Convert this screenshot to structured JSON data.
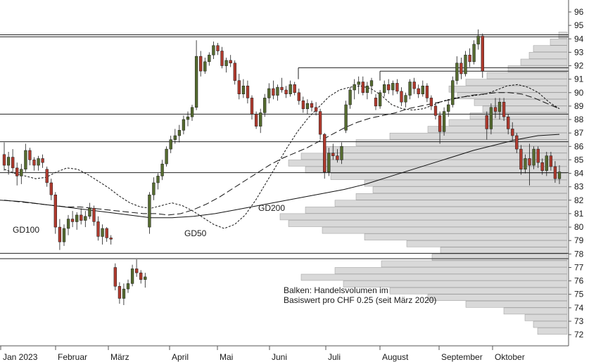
{
  "chart_data": {
    "type": "candlestick",
    "title": "",
    "xlabel": "",
    "ylabel": "",
    "ylim": [
      71,
      97
    ],
    "y_ticks": [
      72,
      73,
      74,
      75,
      76,
      77,
      78,
      79,
      80,
      81,
      82,
      83,
      84,
      85,
      86,
      87,
      88,
      89,
      90,
      91,
      92,
      93,
      94,
      95,
      96
    ],
    "x_ticks": [
      "Jan 2023",
      "Februar",
      "März",
      "April",
      "Mai",
      "Juni",
      "Juli",
      "August",
      "September",
      "Oktober"
    ],
    "grid": false,
    "colors": {
      "up": "#556b2f",
      "down": "#b03a2e",
      "volume_fill": "#d9d9d9",
      "volume_stroke": "#9a9a9a",
      "level_line": "#222222",
      "ma": "#111111"
    },
    "series": [
      {
        "name": "GD50",
        "values": [
          84.3,
          84.0,
          83.8,
          83.6,
          83.7,
          84.1,
          84.4,
          84.3,
          83.9,
          83.4,
          82.9,
          82.3,
          81.8,
          81.5,
          81.4,
          81.6,
          81.8,
          81.6,
          81.2,
          80.7,
          80.2,
          79.9,
          80.2,
          80.9,
          82.0,
          83.3,
          84.6,
          85.9,
          87.1,
          88.1,
          88.9,
          89.7,
          90.2,
          90.4,
          90.5,
          90.3,
          89.8,
          89.1,
          88.8,
          88.7,
          88.8,
          89.1,
          89.4,
          89.6,
          89.7,
          89.8,
          89.9,
          90.2,
          90.5,
          90.6,
          90.4,
          90.0,
          89.3,
          88.8
        ],
        "label": "GD50"
      },
      {
        "name": "GD100",
        "values": [
          82.0,
          81.9,
          81.8,
          81.7,
          81.6,
          81.5,
          81.5,
          81.4,
          81.3,
          81.2,
          81.1,
          81.0,
          81.0,
          80.9,
          81.0,
          81.3,
          81.7,
          82.2,
          82.8,
          83.4,
          84.0,
          84.6,
          85.1,
          85.5,
          85.9,
          86.4,
          86.9,
          87.4,
          87.8,
          88.1,
          88.3,
          88.5,
          88.8,
          89.0,
          89.2,
          89.4,
          89.6,
          89.8,
          89.9,
          90.0,
          90.0,
          89.9,
          89.6,
          89.2,
          88.8
        ],
        "label": "GD100"
      },
      {
        "name": "GD200",
        "values": [
          82.0,
          81.9,
          81.7,
          81.5,
          81.3,
          81.1,
          80.9,
          80.7,
          80.7,
          80.8,
          81.0,
          81.3,
          81.6,
          81.9,
          82.2,
          82.5,
          82.8,
          83.2,
          83.7,
          84.2,
          84.7,
          85.2,
          85.7,
          86.1,
          86.5,
          86.8,
          86.9
        ],
        "label": "GD200"
      }
    ],
    "candles": [
      [
        85.4,
        86.3,
        84.2,
        84.6
      ],
      [
        84.6,
        85.6,
        83.9,
        85.2
      ],
      [
        85.2,
        85.8,
        84.0,
        84.4
      ],
      [
        84.4,
        84.8,
        83.1,
        83.8
      ],
      [
        83.8,
        84.7,
        83.2,
        84.3
      ],
      [
        84.3,
        86.2,
        84.1,
        85.7
      ],
      [
        85.7,
        85.9,
        84.6,
        85.0
      ],
      [
        85.0,
        85.2,
        84.2,
        84.6
      ],
      [
        84.6,
        85.3,
        84.2,
        85.1
      ],
      [
        85.1,
        85.4,
        84.4,
        84.8
      ],
      [
        84.3,
        84.5,
        83.0,
        83.3
      ],
      [
        83.3,
        83.6,
        82.0,
        82.4
      ],
      [
        82.4,
        82.6,
        79.5,
        80.0
      ],
      [
        80.0,
        80.6,
        78.3,
        78.9
      ],
      [
        78.9,
        80.2,
        78.6,
        79.9
      ],
      [
        79.9,
        80.9,
        79.4,
        80.6
      ],
      [
        80.6,
        81.2,
        80.0,
        80.4
      ],
      [
        80.4,
        81.1,
        79.8,
        80.9
      ],
      [
        80.9,
        81.4,
        80.2,
        80.5
      ],
      [
        80.5,
        81.2,
        80.0,
        80.8
      ],
      [
        80.8,
        81.8,
        80.6,
        81.4
      ],
      [
        81.4,
        81.6,
        80.1,
        80.4
      ],
      [
        80.4,
        80.8,
        79.0,
        79.3
      ],
      [
        79.3,
        80.2,
        78.7,
        79.9
      ],
      [
        79.9,
        80.0,
        78.9,
        79.2
      ],
      [
        79.2,
        79.4,
        78.7,
        79.1
      ],
      [
        77.0,
        77.3,
        75.3,
        75.6
      ],
      [
        75.6,
        75.9,
        74.3,
        74.7
      ],
      [
        74.7,
        75.8,
        74.2,
        75.4
      ],
      [
        75.4,
        76.1,
        75.1,
        75.8
      ],
      [
        75.8,
        77.2,
        75.6,
        76.9
      ],
      [
        76.9,
        77.6,
        76.3,
        76.6
      ],
      [
        76.6,
        76.8,
        75.8,
        76.1
      ],
      [
        76.1,
        76.6,
        75.5,
        76.3
      ],
      [
        80.0,
        82.6,
        79.5,
        82.4
      ],
      [
        82.4,
        83.7,
        82.0,
        83.3
      ],
      [
        83.3,
        84.0,
        82.8,
        83.8
      ],
      [
        83.8,
        85.0,
        83.5,
        84.7
      ],
      [
        84.7,
        86.0,
        84.5,
        85.8
      ],
      [
        85.8,
        86.8,
        85.5,
        86.5
      ],
      [
        86.5,
        87.3,
        86.2,
        86.8
      ],
      [
        86.8,
        87.6,
        86.3,
        87.2
      ],
      [
        87.2,
        88.3,
        86.9,
        88.0
      ],
      [
        88.0,
        88.6,
        87.5,
        88.2
      ],
      [
        88.2,
        89.1,
        87.9,
        88.9
      ],
      [
        88.9,
        93.9,
        88.7,
        92.7
      ],
      [
        92.7,
        93.1,
        91.2,
        91.6
      ],
      [
        91.6,
        92.6,
        91.4,
        92.3
      ],
      [
        92.3,
        93.0,
        92.0,
        92.8
      ],
      [
        92.8,
        93.8,
        92.5,
        93.5
      ],
      [
        93.5,
        93.7,
        92.8,
        93.1
      ],
      [
        93.1,
        93.4,
        91.8,
        92.0
      ],
      [
        92.0,
        92.6,
        91.5,
        92.4
      ],
      [
        92.4,
        92.8,
        91.9,
        92.2
      ],
      [
        92.2,
        92.4,
        90.6,
        90.9
      ],
      [
        90.9,
        91.4,
        89.5,
        89.9
      ],
      [
        89.9,
        91.0,
        89.6,
        90.5
      ],
      [
        90.5,
        90.9,
        89.2,
        89.6
      ],
      [
        89.6,
        89.8,
        88.0,
        88.4
      ],
      [
        88.4,
        88.6,
        87.3,
        87.5
      ],
      [
        87.5,
        88.8,
        87.0,
        88.5
      ],
      [
        88.5,
        89.9,
        88.2,
        89.6
      ],
      [
        89.6,
        90.7,
        89.2,
        90.3
      ],
      [
        90.3,
        90.9,
        89.5,
        89.8
      ],
      [
        89.8,
        90.6,
        89.4,
        90.4
      ],
      [
        90.4,
        91.1,
        90.0,
        90.2
      ],
      [
        90.2,
        90.5,
        89.6,
        89.9
      ],
      [
        89.9,
        90.9,
        89.7,
        90.6
      ],
      [
        90.6,
        90.8,
        89.8,
        90.0
      ],
      [
        90.0,
        90.3,
        89.1,
        89.4
      ],
      [
        89.4,
        89.7,
        88.5,
        88.8
      ],
      [
        88.8,
        89.5,
        88.4,
        89.2
      ],
      [
        89.2,
        89.4,
        88.6,
        88.9
      ],
      [
        88.9,
        89.3,
        88.3,
        88.6
      ],
      [
        88.6,
        88.8,
        86.5,
        86.9
      ],
      [
        86.9,
        87.0,
        83.6,
        84.1
      ],
      [
        84.1,
        85.9,
        83.8,
        85.5
      ],
      [
        85.5,
        86.2,
        85.0,
        85.3
      ],
      [
        85.3,
        85.8,
        84.8,
        85.0
      ],
      [
        85.0,
        86.3,
        84.7,
        86.0
      ],
      [
        87.2,
        89.4,
        87.0,
        89.1
      ],
      [
        89.1,
        90.4,
        88.8,
        90.2
      ],
      [
        90.2,
        91.0,
        89.5,
        90.6
      ],
      [
        90.6,
        91.2,
        89.9,
        90.8
      ],
      [
        90.8,
        91.2,
        89.8,
        90.0
      ],
      [
        90.0,
        90.8,
        89.5,
        90.5
      ],
      [
        90.5,
        91.1,
        89.9,
        90.9
      ],
      [
        89.6,
        89.9,
        88.7,
        89.0
      ],
      [
        89.0,
        90.2,
        88.8,
        90.0
      ],
      [
        90.0,
        90.9,
        89.7,
        90.6
      ],
      [
        90.6,
        91.0,
        89.9,
        90.2
      ],
      [
        90.2,
        90.9,
        89.8,
        90.7
      ],
      [
        90.7,
        91.0,
        89.9,
        90.1
      ],
      [
        90.1,
        90.4,
        89.0,
        89.3
      ],
      [
        89.3,
        90.0,
        88.9,
        89.8
      ],
      [
        89.8,
        91.0,
        89.5,
        90.8
      ],
      [
        90.8,
        91.1,
        89.9,
        90.3
      ],
      [
        90.3,
        90.6,
        89.6,
        89.9
      ],
      [
        89.9,
        90.9,
        89.7,
        90.5
      ],
      [
        90.5,
        90.7,
        89.3,
        89.6
      ],
      [
        89.6,
        89.8,
        88.7,
        89.0
      ],
      [
        89.0,
        89.3,
        88.0,
        88.3
      ],
      [
        88.3,
        88.6,
        86.2,
        87.1
      ],
      [
        87.1,
        88.9,
        86.8,
        88.6
      ],
      [
        88.6,
        89.4,
        88.2,
        89.1
      ],
      [
        89.1,
        91.2,
        88.9,
        90.9
      ],
      [
        90.9,
        92.7,
        90.6,
        92.2
      ],
      [
        92.2,
        92.6,
        91.0,
        91.4
      ],
      [
        91.4,
        93.1,
        91.2,
        92.8
      ],
      [
        92.8,
        93.3,
        91.9,
        92.3
      ],
      [
        92.3,
        93.9,
        92.1,
        93.6
      ],
      [
        93.6,
        94.7,
        93.2,
        94.2
      ],
      [
        94.2,
        94.4,
        91.1,
        91.6
      ],
      [
        88.3,
        88.6,
        86.5,
        87.3
      ],
      [
        87.3,
        89.2,
        86.9,
        88.9
      ],
      [
        88.9,
        89.6,
        88.1,
        88.6
      ],
      [
        88.6,
        89.6,
        88.0,
        89.3
      ],
      [
        89.3,
        89.6,
        87.9,
        88.2
      ],
      [
        88.2,
        88.4,
        86.9,
        87.3
      ],
      [
        87.3,
        87.8,
        86.4,
        86.8
      ],
      [
        86.8,
        87.0,
        85.5,
        85.8
      ],
      [
        85.8,
        86.1,
        83.9,
        84.3
      ],
      [
        84.3,
        85.4,
        84.0,
        85.1
      ],
      [
        85.1,
        86.2,
        83.1,
        84.6
      ],
      [
        84.6,
        86.0,
        84.3,
        85.8
      ],
      [
        85.8,
        86.0,
        84.4,
        84.8
      ],
      [
        84.8,
        85.1,
        83.9,
        84.2
      ],
      [
        84.2,
        85.6,
        83.8,
        85.3
      ],
      [
        85.3,
        85.6,
        84.2,
        84.5
      ],
      [
        84.5,
        84.9,
        83.3,
        83.6
      ],
      [
        83.6,
        84.6,
        83.2,
        84.1
      ]
    ],
    "level_lines": [
      94.3,
      94.15,
      91.85,
      91.6,
      88.4,
      86.35,
      84.05,
      78.05,
      77.65
    ],
    "ma_labels": [
      {
        "text": "GD100",
        "series": "GD100"
      },
      {
        "text": "GD50",
        "series": "GD50"
      },
      {
        "text": "GD200",
        "series": "GD200"
      }
    ],
    "volume_profile": {
      "bins": [
        72,
        72.5,
        73,
        73.5,
        74,
        74.5,
        75,
        75.5,
        76,
        76.5,
        77,
        77.5,
        78,
        78.5,
        79,
        79.5,
        80,
        80.5,
        81,
        81.5,
        82,
        82.5,
        83,
        83.5,
        84,
        84.5,
        85,
        85.5,
        86,
        86.5,
        87,
        87.5,
        88,
        88.5,
        89,
        89.5,
        90,
        90.5,
        91,
        91.5,
        92,
        92.5,
        93,
        93.5,
        94
      ],
      "values": [
        0.07,
        0.08,
        0.1,
        0.15,
        0.24,
        0.33,
        0.42,
        0.53,
        0.63,
        0.55,
        0.44,
        0.32,
        0.3,
        0.38,
        0.48,
        0.58,
        0.66,
        0.68,
        0.62,
        0.55,
        0.5,
        0.46,
        0.48,
        0.56,
        0.62,
        0.66,
        0.63,
        0.57,
        0.5,
        0.42,
        0.33,
        0.28,
        0.23,
        0.2,
        0.22,
        0.26,
        0.28,
        0.24,
        0.19,
        0.14,
        0.11,
        0.09,
        0.08,
        0.04,
        0.02
      ]
    },
    "annotation": [
      "Balken: Handelsvolumen im",
      "Basiswert pro CHF 0.25 (seit März 2020)"
    ]
  }
}
